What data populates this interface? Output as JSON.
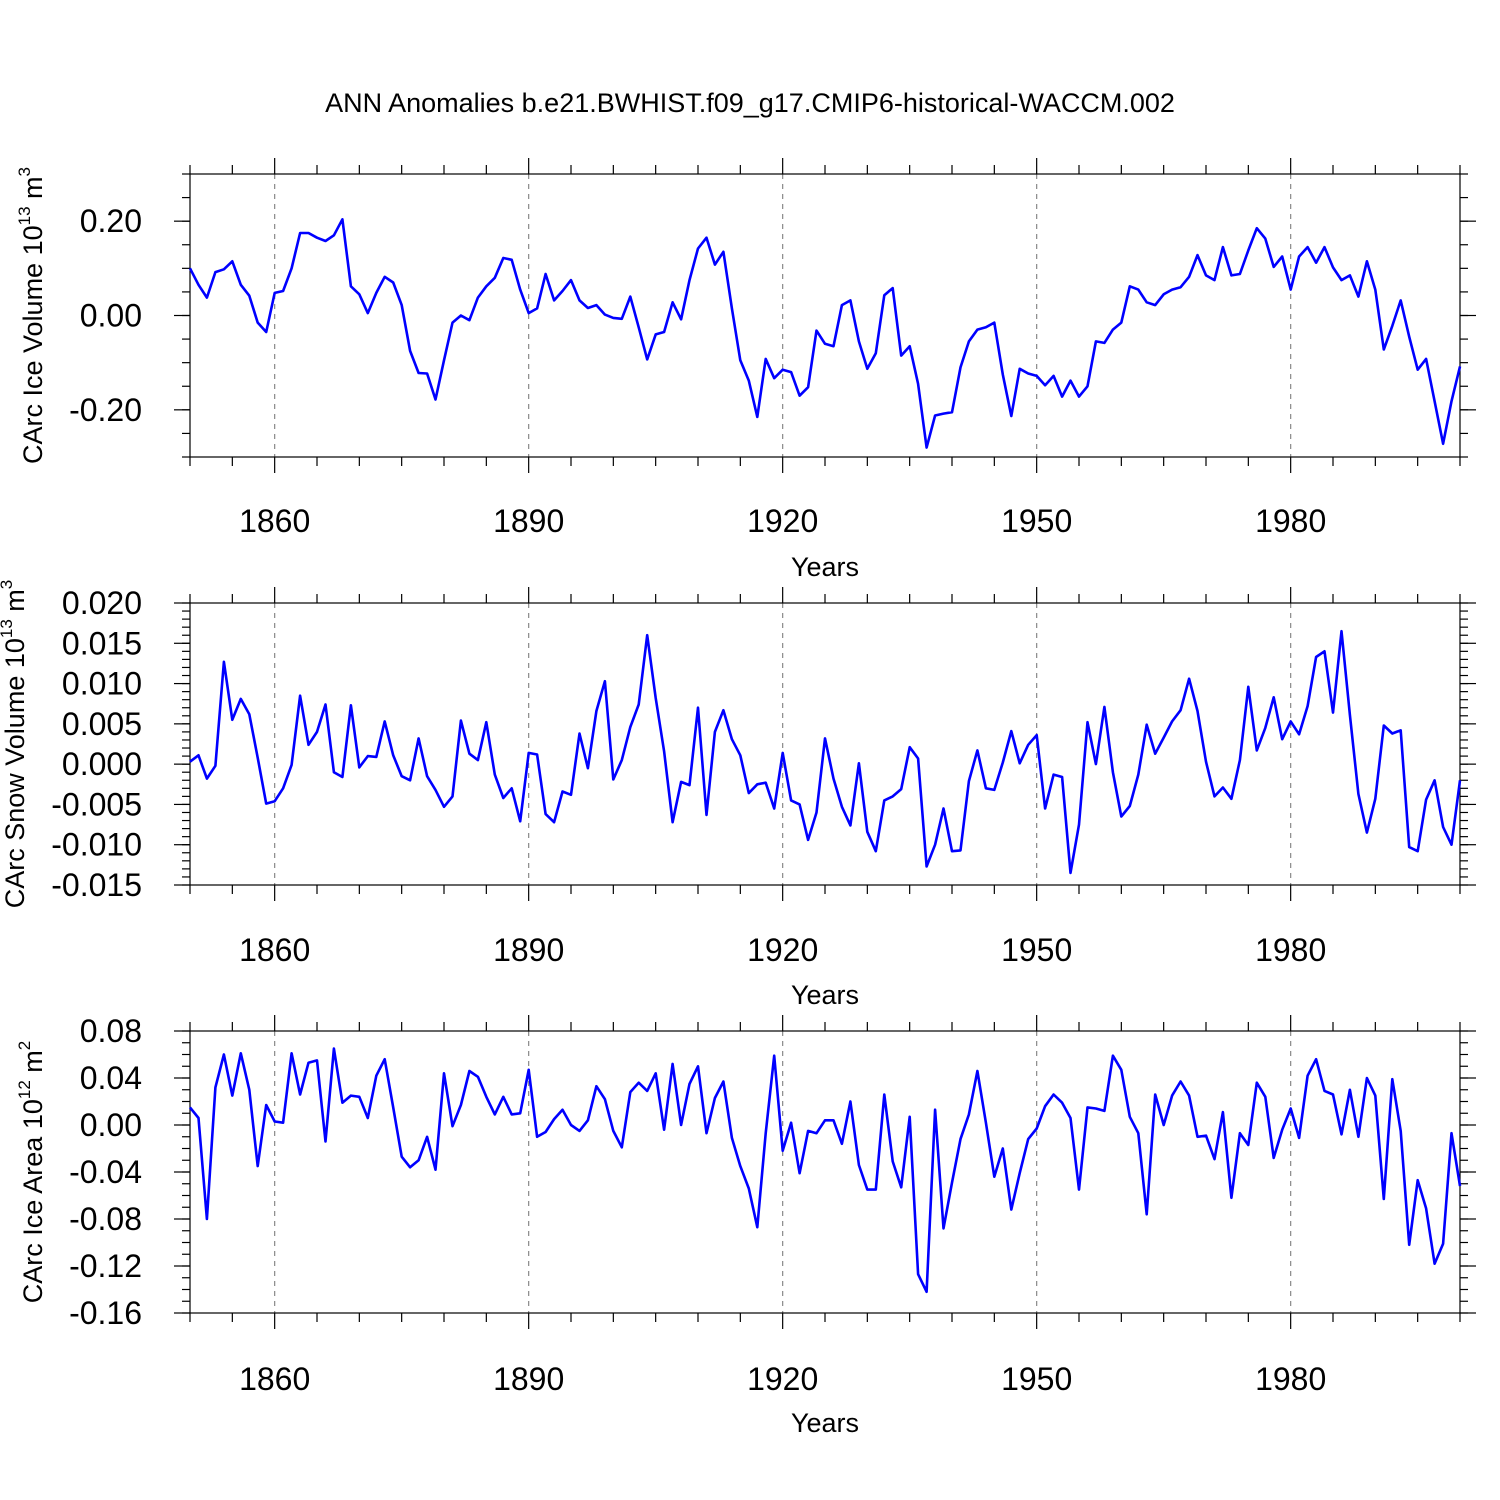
{
  "figure": {
    "title": "ANN Anomalies b.e21.BWHIST.f09_g17.CMIP6-historical-WACCM.002",
    "line_color": "#0000ff"
  },
  "chart_data": [
    {
      "type": "line",
      "id": "ice_volume",
      "ylabel": "CArc Ice Volume 10",
      "ylabel_exp": "13",
      "ylabel_unit": " m",
      "ylabel_unit_exp": "3",
      "xlabel": "Years",
      "xlim": [
        1850,
        2000
      ],
      "ylim": [
        -0.3,
        0.3
      ],
      "yticks": [
        -0.2,
        0.0,
        0.2
      ],
      "ytick_labels": [
        "-0.20",
        "0.00",
        "0.20"
      ],
      "xticks": [
        1860,
        1890,
        1920,
        1950,
        1980
      ],
      "xtick_labels": [
        "1860",
        "1890",
        "1920",
        "1950",
        "1980"
      ],
      "grid_x": true,
      "start_year": 1850,
      "values": [
        0.1,
        0.065,
        0.038,
        0.092,
        0.098,
        0.115,
        0.065,
        0.042,
        -0.015,
        -0.035,
        0.048,
        0.052,
        0.1,
        0.175,
        0.175,
        0.165,
        0.158,
        0.17,
        0.204,
        0.062,
        0.045,
        0.005,
        0.048,
        0.082,
        0.07,
        0.022,
        -0.075,
        -0.122,
        -0.123,
        -0.178,
        -0.095,
        -0.015,
        0.0,
        -0.01,
        0.038,
        0.062,
        0.08,
        0.122,
        0.118,
        0.055,
        0.005,
        0.015,
        0.088,
        0.032,
        0.052,
        0.075,
        0.032,
        0.016,
        0.022,
        0.002,
        -0.005,
        -0.007,
        0.04,
        -0.025,
        -0.093,
        -0.04,
        -0.035,
        0.028,
        -0.008,
        0.075,
        0.142,
        0.165,
        0.108,
        0.135,
        0.015,
        -0.095,
        -0.138,
        -0.215,
        -0.092,
        -0.133,
        -0.115,
        -0.12,
        -0.17,
        -0.152,
        -0.032,
        -0.06,
        -0.065,
        0.022,
        0.032,
        -0.055,
        -0.113,
        -0.08,
        0.043,
        0.058,
        -0.085,
        -0.065,
        -0.145,
        -0.28,
        -0.212,
        -0.208,
        -0.205,
        -0.11,
        -0.055,
        -0.03,
        -0.025,
        -0.015,
        -0.125,
        -0.213,
        -0.113,
        -0.123,
        -0.128,
        -0.148,
        -0.128,
        -0.172,
        -0.138,
        -0.172,
        -0.15,
        -0.055,
        -0.058,
        -0.03,
        -0.015,
        0.062,
        0.055,
        0.028,
        0.022,
        0.045,
        0.055,
        0.06,
        0.082,
        0.128,
        0.085,
        0.075,
        0.145,
        0.085,
        0.088,
        0.138,
        0.185,
        0.163,
        0.103,
        0.125,
        0.055,
        0.125,
        0.145,
        0.112,
        0.145,
        0.102,
        0.075,
        0.085,
        0.04,
        0.115,
        0.055,
        -0.072,
        -0.022,
        0.032,
        -0.045,
        -0.115,
        -0.092,
        -0.182,
        -0.272,
        -0.182,
        -0.108
      ]
    },
    {
      "type": "line",
      "id": "snow_volume",
      "ylabel": "CArc Snow Volume 10",
      "ylabel_exp": "13",
      "ylabel_unit": " m",
      "ylabel_unit_exp": "3",
      "xlabel": "Years",
      "xlim": [
        1850,
        2000
      ],
      "ylim": [
        -0.015,
        0.02
      ],
      "yticks": [
        -0.015,
        -0.01,
        -0.005,
        0.0,
        0.005,
        0.01,
        0.015,
        0.02
      ],
      "ytick_labels": [
        "-0.015",
        "-0.010",
        "-0.005",
        "0.000",
        "0.005",
        "0.010",
        "0.015",
        "0.020"
      ],
      "xticks": [
        1860,
        1890,
        1920,
        1950,
        1980
      ],
      "xtick_labels": [
        "1860",
        "1890",
        "1920",
        "1950",
        "1980"
      ],
      "grid_x": true,
      "start_year": 1850,
      "values": [
        0.0003,
        0.0011,
        -0.0018,
        -0.0002,
        0.0127,
        0.0055,
        0.0081,
        0.0062,
        0.0008,
        -0.0049,
        -0.0046,
        -0.003,
        -0.0001,
        0.0085,
        0.0024,
        0.004,
        0.0074,
        -0.001,
        -0.0016,
        0.0073,
        -0.0004,
        0.001,
        0.0009,
        0.0053,
        0.0011,
        -0.0015,
        -0.002,
        0.0032,
        -0.0015,
        -0.0032,
        -0.0053,
        -0.004,
        0.0054,
        0.0013,
        0.0005,
        0.0052,
        -0.0013,
        -0.0042,
        -0.003,
        -0.0071,
        0.0014,
        0.0012,
        -0.0062,
        -0.0072,
        -0.0034,
        -0.0038,
        0.0038,
        -0.0005,
        0.0066,
        0.0103,
        -0.0019,
        0.0005,
        0.0046,
        0.0074,
        0.016,
        0.0082,
        0.0016,
        -0.0072,
        -0.0022,
        -0.0026,
        0.007,
        -0.0063,
        0.004,
        0.0067,
        0.0031,
        0.0011,
        -0.0036,
        -0.0025,
        -0.0023,
        -0.0055,
        0.0014,
        -0.0045,
        -0.005,
        -0.0094,
        -0.006,
        0.0032,
        -0.0018,
        -0.0053,
        -0.0076,
        0.0001,
        -0.0084,
        -0.0108,
        -0.0045,
        -0.004,
        -0.0031,
        0.0021,
        0.0007,
        -0.0127,
        -0.01,
        -0.0055,
        -0.0108,
        -0.0107,
        -0.0021,
        0.0017,
        -0.003,
        -0.0032,
        0.0002,
        0.0041,
        0.0001,
        0.0024,
        0.0036,
        -0.0055,
        -0.0013,
        -0.0016,
        -0.0135,
        -0.0075,
        0.0052,
        0.0,
        0.0071,
        -0.001,
        -0.0065,
        -0.0052,
        -0.0013,
        0.0049,
        0.0013,
        0.0033,
        0.0053,
        0.0067,
        0.0106,
        0.0066,
        0.0003,
        -0.004,
        -0.0029,
        -0.0043,
        0.0005,
        0.0096,
        0.0017,
        0.0045,
        0.0083,
        0.0031,
        0.0053,
        0.0037,
        0.0072,
        0.0133,
        0.014,
        0.0064,
        0.0165,
        0.0061,
        -0.0037,
        -0.0085,
        -0.0043,
        0.0048,
        0.0038,
        0.0042,
        -0.0103,
        -0.0108,
        -0.0044,
        -0.002,
        -0.0078,
        -0.01,
        -0.002
      ]
    },
    {
      "type": "line",
      "id": "ice_area",
      "ylabel": "CArc Ice Area 10",
      "ylabel_exp": "12",
      "ylabel_unit": " m",
      "ylabel_unit_exp": "2",
      "xlabel": "Years",
      "xlim": [
        1850,
        2000
      ],
      "ylim": [
        -0.16,
        0.08
      ],
      "yticks": [
        -0.16,
        -0.12,
        -0.08,
        -0.04,
        0.0,
        0.04,
        0.08
      ],
      "ytick_labels": [
        "-0.16",
        "-0.12",
        "-0.08",
        "-0.04",
        "0.00",
        "0.04",
        "0.08"
      ],
      "xticks": [
        1860,
        1890,
        1920,
        1950,
        1980
      ],
      "xtick_labels": [
        "1860",
        "1890",
        "1920",
        "1950",
        "1980"
      ],
      "grid_x": true,
      "start_year": 1850,
      "values": [
        0.015,
        0.006,
        -0.08,
        0.032,
        0.06,
        0.025,
        0.061,
        0.03,
        -0.035,
        0.017,
        0.003,
        0.002,
        0.061,
        0.026,
        0.053,
        0.055,
        -0.014,
        0.065,
        0.019,
        0.025,
        0.024,
        0.006,
        0.042,
        0.056,
        0.015,
        -0.027,
        -0.036,
        -0.03,
        -0.01,
        -0.038,
        0.044,
        -0.001,
        0.017,
        0.046,
        0.041,
        0.024,
        0.009,
        0.024,
        0.009,
        0.01,
        0.047,
        -0.01,
        -0.006,
        0.005,
        0.013,
        0.0,
        -0.005,
        0.004,
        0.033,
        0.022,
        -0.005,
        -0.019,
        0.028,
        0.036,
        0.029,
        0.044,
        -0.004,
        0.052,
        0.0,
        0.035,
        0.05,
        -0.007,
        0.023,
        0.037,
        -0.011,
        -0.035,
        -0.054,
        -0.087,
        -0.007,
        0.059,
        -0.022,
        0.002,
        -0.041,
        -0.005,
        -0.007,
        0.004,
        0.004,
        -0.016,
        0.02,
        -0.034,
        -0.055,
        -0.055,
        0.026,
        -0.031,
        -0.053,
        0.007,
        -0.127,
        -0.142,
        0.013,
        -0.088,
        -0.049,
        -0.012,
        0.009,
        0.046,
        0.002,
        -0.044,
        -0.02,
        -0.072,
        -0.041,
        -0.012,
        -0.003,
        0.016,
        0.026,
        0.019,
        0.006,
        -0.055,
        0.015,
        0.014,
        0.012,
        0.059,
        0.047,
        0.007,
        -0.007,
        -0.076,
        0.026,
        0.0,
        0.025,
        0.037,
        0.025,
        -0.01,
        -0.009,
        -0.029,
        0.011,
        -0.062,
        -0.007,
        -0.017,
        0.036,
        0.024,
        -0.028,
        -0.004,
        0.014,
        -0.011,
        0.042,
        0.056,
        0.029,
        0.026,
        -0.008,
        0.03,
        -0.01,
        0.04,
        0.025,
        -0.063,
        0.039,
        -0.005,
        -0.102,
        -0.047,
        -0.071,
        -0.118,
        -0.101,
        -0.007,
        -0.052
      ]
    }
  ]
}
